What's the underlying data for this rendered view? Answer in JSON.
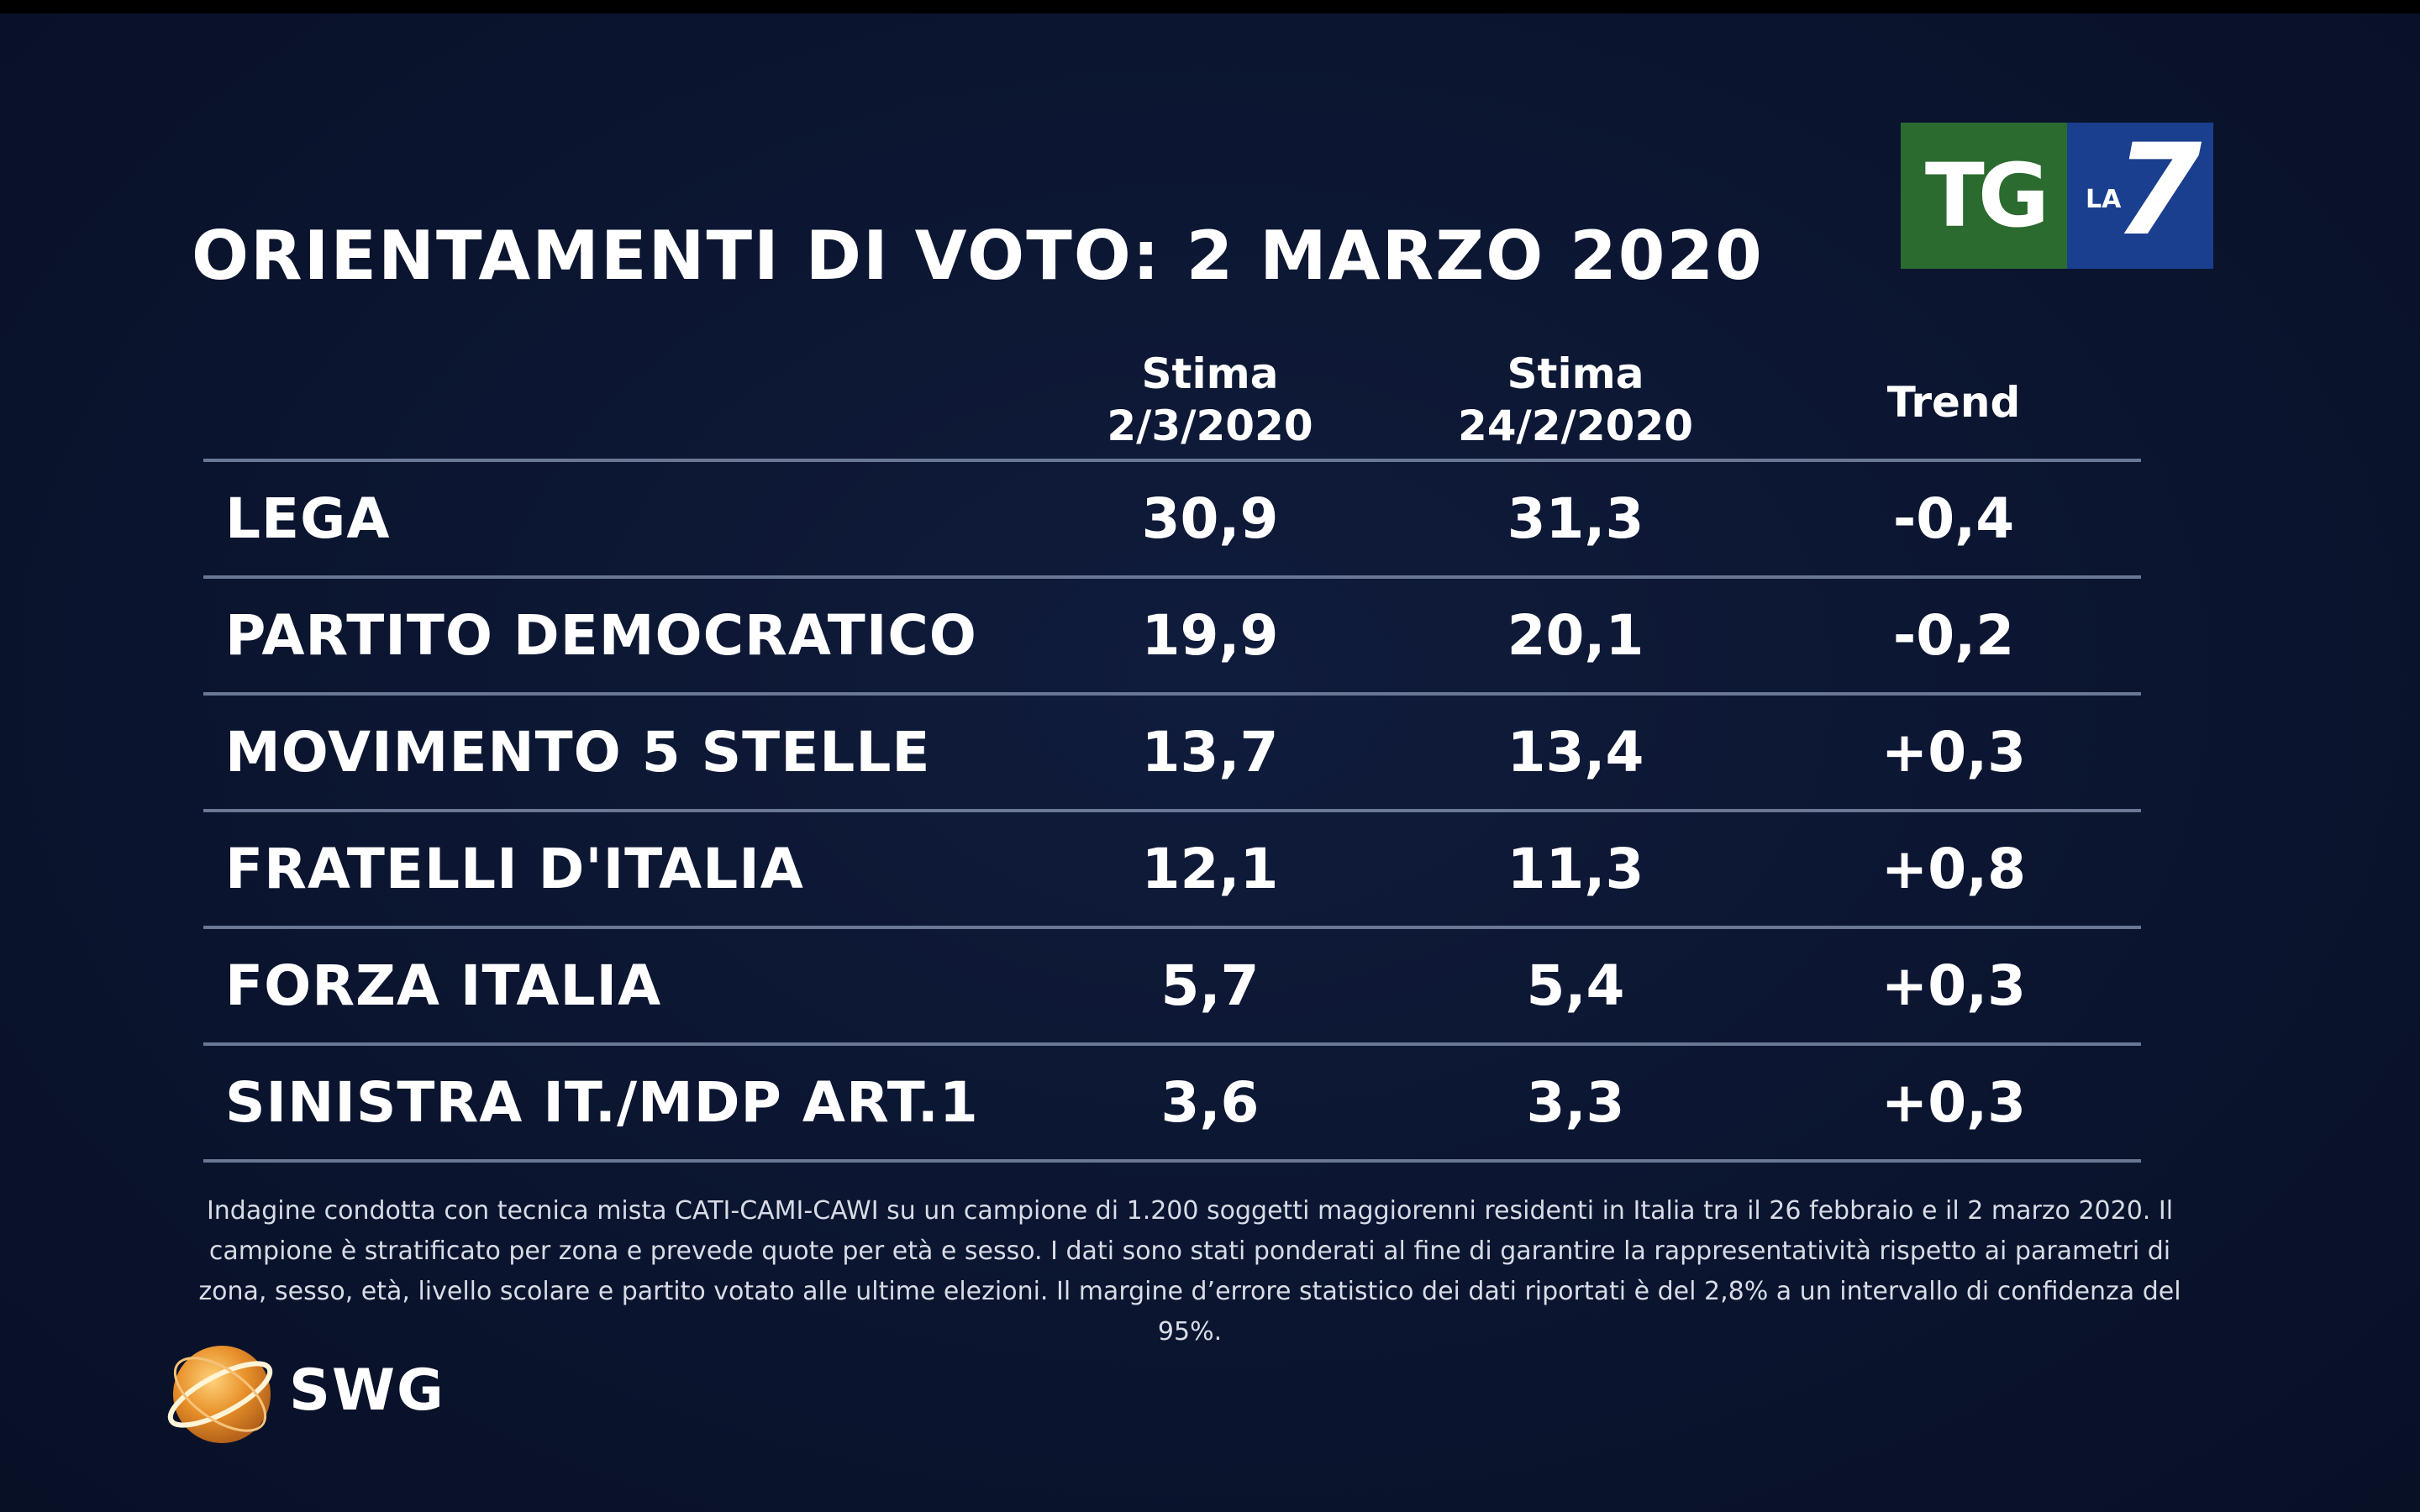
{
  "title": "ORIENTAMENTI DI VOTO: 2 MARZO 2020",
  "logo": {
    "tg": "TG",
    "la": "LA",
    "seven": "7",
    "colors": {
      "green": "#2b6b2f",
      "blue": "#1a3f8f"
    }
  },
  "chart_data": {
    "type": "table",
    "title": "ORIENTAMENTI DI VOTO: 2 MARZO 2020",
    "columns": [
      {
        "line1": "Stima",
        "line2": "2/3/2020"
      },
      {
        "line1": "Stima",
        "line2": "24/2/2020"
      },
      {
        "line1": "Trend",
        "line2": ""
      }
    ],
    "rows": [
      {
        "party": "LEGA",
        "stima_current": "30,9",
        "stima_previous": "31,3",
        "trend": "-0,4"
      },
      {
        "party": "PARTITO DEMOCRATICO",
        "stima_current": "19,9",
        "stima_previous": "20,1",
        "trend": "-0,2"
      },
      {
        "party": "MOVIMENTO 5 STELLE",
        "stima_current": "13,7",
        "stima_previous": "13,4",
        "trend": "+0,3"
      },
      {
        "party": "FRATELLI D'ITALIA",
        "stima_current": "12,1",
        "stima_previous": "11,3",
        "trend": "+0,8"
      },
      {
        "party": "FORZA ITALIA",
        "stima_current": "5,7",
        "stima_previous": "5,4",
        "trend": "+0,3"
      },
      {
        "party": "SINISTRA IT./MDP ART.1",
        "stima_current": "3,6",
        "stima_previous": "3,3",
        "trend": "+0,3"
      }
    ]
  },
  "note": "Indagine condotta con tecnica mista CATI-CAMI-CAWI su un campione di 1.200 soggetti maggiorenni residenti in Italia tra il 26 febbraio e il 2 marzo 2020. Il campione è stratificato per zona e prevede quote per età e sesso. I dati sono stati ponderati al fine di garantire la rappresentatività rispetto ai parametri di zona, sesso, età, livello scolare e partito votato alle ultime elezioni. Il margine d’errore statistico dei dati riportati è del 2,8% a un intervallo di confidenza del 95%.",
  "source_logo": {
    "text": "SWG",
    "icon": "globe-icon",
    "colors": {
      "orange": "#e8902a"
    }
  }
}
